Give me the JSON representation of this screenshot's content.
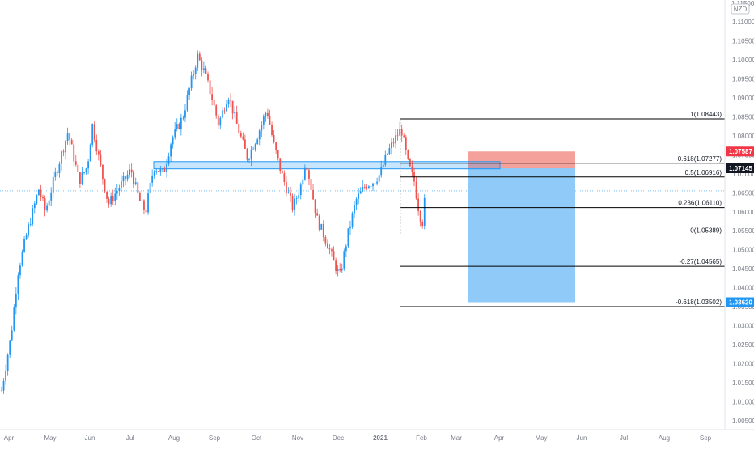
{
  "currency_badge": "NZD",
  "top_label": "1.11500",
  "price_labels": [
    "1.11000",
    "1.10500",
    "1.10000",
    "1.09500",
    "1.09000",
    "1.08500",
    "1.08000",
    "1.07500",
    "1.07000",
    "1.06500",
    "1.06000",
    "1.05500",
    "1.05000",
    "1.04500",
    "1.04000",
    "1.03500",
    "1.03000",
    "1.02500",
    "1.02000",
    "1.01500",
    "1.01000",
    "1.00500"
  ],
  "time_labels": [
    "Apr",
    "May",
    "Jun",
    "Jul",
    "Aug",
    "Sep",
    "Oct",
    "Nov",
    "Dec",
    "2021",
    "Feb",
    "Mar",
    "Apr",
    "May",
    "Jun",
    "Jul",
    "Aug",
    "Sep"
  ],
  "fib_labels": [
    {
      "level": 1.08443,
      "text": "1(1.08443)"
    },
    {
      "level": 1.07277,
      "text": "0.618(1.07277)"
    },
    {
      "level": 1.06916,
      "text": "0.5(1.06916)"
    },
    {
      "level": 1.0611,
      "text": "0.236(1.06110)"
    },
    {
      "level": 1.05389,
      "text": "0(1.05389)"
    },
    {
      "level": 1.04565,
      "text": "-0.27(1.04565)"
    },
    {
      "level": 1.03502,
      "text": "-0.618(1.03502)"
    }
  ],
  "price_tags": [
    {
      "value": 1.07587,
      "text": "1.07587",
      "color": "#f23645"
    },
    {
      "value": 1.07145,
      "text": "1.07145",
      "color": "#131722"
    },
    {
      "value": 1.0362,
      "text": "1.03620",
      "color": "#2196f3"
    }
  ],
  "colors": {
    "up": "#2196f3",
    "down": "#ef5350",
    "fib_line": "#000000",
    "profit_zone": "#90caf9",
    "loss_zone": "#f4a19b",
    "grid_text": "#787b86"
  },
  "chart_data": {
    "type": "candlestick",
    "instrument_quote": "NZD",
    "y_range": [
      1.0035,
      1.1165
    ],
    "current_price": 1.0655,
    "x_axis_ticks": [
      "Apr",
      "May",
      "Jun",
      "Jul",
      "Aug",
      "Sep",
      "Oct",
      "Nov",
      "Dec",
      "2021",
      "Feb",
      "Mar",
      "Apr",
      "May",
      "Jun",
      "Jul",
      "Aug",
      "Sep"
    ],
    "price_path_keypoints": [
      {
        "t": "Apr",
        "close": 1.012
      },
      {
        "t": "May",
        "close": 1.063
      },
      {
        "t": "May-mid",
        "close": 1.08
      },
      {
        "t": "Jun",
        "close": 1.066
      },
      {
        "t": "Jun-mid",
        "close": 1.083
      },
      {
        "t": "Jul",
        "close": 1.061
      },
      {
        "t": "Aug",
        "close": 1.082
      },
      {
        "t": "Aug-mid",
        "close": 1.102
      },
      {
        "t": "Sep",
        "close": 1.085
      },
      {
        "t": "Oct",
        "close": 1.072
      },
      {
        "t": "Nov",
        "close": 1.057
      },
      {
        "t": "Dec",
        "close": 1.042
      },
      {
        "t": "2021",
        "close": 1.072
      },
      {
        "t": "Jan-high",
        "close": 1.0844
      },
      {
        "t": "Feb",
        "close": 1.0655
      }
    ],
    "support_zone": [
      1.0713,
      1.0732
    ],
    "fibonacci": [
      {
        "ratio": 1,
        "price": 1.08443
      },
      {
        "ratio": 0.618,
        "price": 1.07277
      },
      {
        "ratio": 0.5,
        "price": 1.06916
      },
      {
        "ratio": 0.236,
        "price": 1.0611
      },
      {
        "ratio": 0,
        "price": 1.05389
      },
      {
        "ratio": -0.27,
        "price": 1.04565
      },
      {
        "ratio": -0.618,
        "price": 1.03502
      }
    ],
    "position": {
      "side": "short",
      "entry": 1.07145,
      "stop": 1.07587,
      "target": 1.0362
    }
  }
}
